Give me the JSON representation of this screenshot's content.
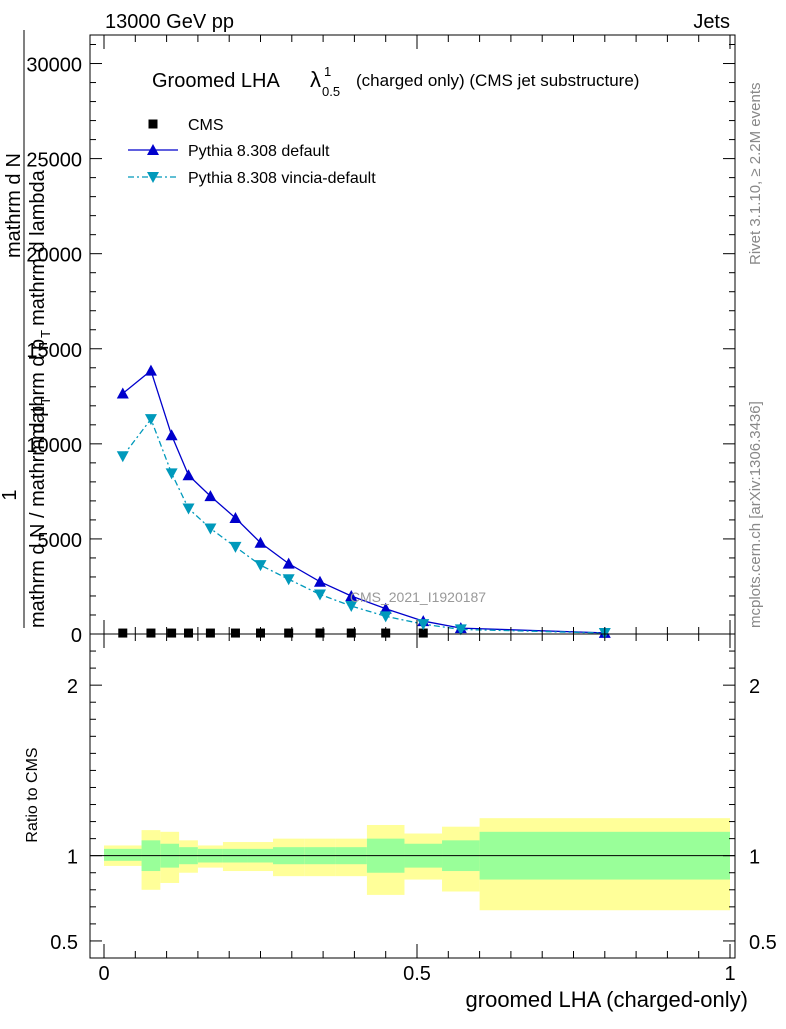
{
  "header": {
    "left": "13000 GeV pp",
    "right": "Jets"
  },
  "side_labels": {
    "rivet": "Rivet 3.1.10, ≥ 2.2M events",
    "mcplots": "mcplots.cern.ch [arXiv:1306.3436]"
  },
  "watermark": "CMS_2021_I1920187",
  "chart_data": {
    "type": "line",
    "title_prefix": "Groomed LHA ",
    "title_symbol": "λ",
    "title_sup": "1",
    "title_sub": "0.5",
    "title_suffix": "(charged only) (CMS jet substructure)",
    "xlabel": "groomed LHA (charged-only)",
    "ylabel_line1": "1",
    "ylabel_line2": "mathrm d N / mathrm d p",
    "ylabel_sub": "T",
    "ylabel_line3": "mathrm d",
    "ylabel_line3_b": "N",
    "ylabel_line4": "mathrm d p",
    "ylabel_line4_b": "mathrm d lambda",
    "ratio_ylabel": "Ratio to CMS",
    "xlim": [
      0,
      1
    ],
    "ylim": [
      0,
      31500
    ],
    "ratio_ylim": [
      0.4,
      2.3
    ],
    "x_ticks": [
      "0",
      "0.5",
      "1"
    ],
    "x_tick_values": [
      0,
      0.5,
      1
    ],
    "y_ticks": [
      "0",
      "5000",
      "10000",
      "15000",
      "20000",
      "25000",
      "30000"
    ],
    "y_tick_values": [
      0,
      5000,
      10000,
      15000,
      20000,
      25000,
      30000
    ],
    "ratio_ticks": [
      "0.5",
      "1",
      "2"
    ],
    "ratio_tick_values": [
      0.5,
      1,
      2
    ],
    "legend_position": "top-left",
    "series": [
      {
        "name": "CMS",
        "marker": "square",
        "color": "#000000",
        "x": [
          0.03,
          0.075,
          0.108,
          0.135,
          0.17,
          0.21,
          0.25,
          0.295,
          0.345,
          0.395,
          0.45,
          0.51
        ],
        "y": [
          50,
          50,
          50,
          50,
          50,
          50,
          50,
          50,
          50,
          50,
          50,
          50
        ]
      },
      {
        "name": "Pythia 8.308 default",
        "marker": "triangle-up",
        "color": "#0000cc",
        "x": [
          0.03,
          0.075,
          0.108,
          0.135,
          0.17,
          0.21,
          0.25,
          0.295,
          0.345,
          0.395,
          0.45,
          0.51,
          0.57,
          0.8
        ],
        "y": [
          12650,
          13850,
          10450,
          8350,
          7250,
          6100,
          4800,
          3700,
          2750,
          2000,
          1330,
          680,
          310,
          60
        ]
      },
      {
        "name": "Pythia 8.308 vincia-default",
        "marker": "triangle-down",
        "color": "#0099bb",
        "x": [
          0.03,
          0.075,
          0.108,
          0.135,
          0.17,
          0.21,
          0.25,
          0.295,
          0.345,
          0.395,
          0.45,
          0.51,
          0.57,
          0.8
        ],
        "y": [
          9350,
          11300,
          8450,
          6600,
          5550,
          4580,
          3620,
          2880,
          2080,
          1470,
          930,
          520,
          240,
          50
        ]
      }
    ],
    "ratio_bands": {
      "edges": [
        0,
        0.06,
        0.09,
        0.12,
        0.15,
        0.19,
        0.23,
        0.27,
        0.32,
        0.37,
        0.42,
        0.48,
        0.54,
        0.6,
        1.0
      ],
      "inner": [
        [
          0.97,
          1.04
        ],
        [
          0.91,
          1.09
        ],
        [
          0.93,
          1.07
        ],
        [
          0.95,
          1.05
        ],
        [
          0.96,
          1.04
        ],
        [
          0.96,
          1.04
        ],
        [
          0.96,
          1.04
        ],
        [
          0.95,
          1.05
        ],
        [
          0.95,
          1.05
        ],
        [
          0.95,
          1.05
        ],
        [
          0.9,
          1.1
        ],
        [
          0.93,
          1.07
        ],
        [
          0.91,
          1.09
        ],
        [
          0.86,
          1.14
        ]
      ],
      "outer": [
        [
          0.94,
          1.06
        ],
        [
          0.8,
          1.15
        ],
        [
          0.84,
          1.14
        ],
        [
          0.9,
          1.09
        ],
        [
          0.93,
          1.06
        ],
        [
          0.91,
          1.08
        ],
        [
          0.91,
          1.08
        ],
        [
          0.88,
          1.1
        ],
        [
          0.88,
          1.1
        ],
        [
          0.88,
          1.1
        ],
        [
          0.77,
          1.18
        ],
        [
          0.86,
          1.13
        ],
        [
          0.79,
          1.17
        ],
        [
          0.68,
          1.22
        ]
      ],
      "inner_color": "#99ff99",
      "outer_color": "#ffff99"
    }
  }
}
